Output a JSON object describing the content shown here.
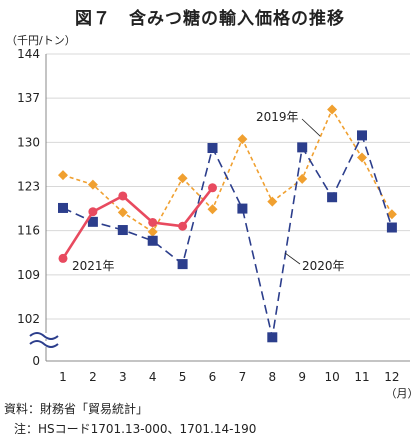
{
  "title": "図７　含みつ糖の輸入価格の推移",
  "source": "資料：財務省「貿易統計」",
  "note": "注：HSコード1701.13-000、1701.14-190",
  "chart_data": {
    "type": "line",
    "ylabel": "（千円/トン）",
    "xlabel": "（月）",
    "x": [
      1,
      2,
      3,
      4,
      5,
      6,
      7,
      8,
      9,
      10,
      11,
      12
    ],
    "x_ticks": [
      "1",
      "2",
      "3",
      "4",
      "5",
      "6",
      "7",
      "8",
      "9",
      "10",
      "11",
      "12"
    ],
    "y_ticks": [
      102,
      109,
      116,
      123,
      130,
      137,
      144
    ],
    "y_zero_label": "0",
    "ylim": [
      0,
      144
    ],
    "axis_break": true,
    "grid": "horizontal",
    "colors": {
      "2019": "#f0a030",
      "2020": "#2c3e8c",
      "2021": "#e84a5f"
    },
    "series": [
      {
        "name": "2019年",
        "values": [
          124.8,
          123.3,
          118.9,
          115.8,
          124.3,
          119.4,
          130.5,
          120.6,
          124.2,
          135.2,
          127.6,
          118.6
        ]
      },
      {
        "name": "2020年",
        "values": [
          119.6,
          117.4,
          116.1,
          114.4,
          110.7,
          129.1,
          119.5,
          99.1,
          129.2,
          121.3,
          131.1,
          116.5
        ]
      },
      {
        "name": "2021年",
        "values": [
          111.6,
          119.0,
          121.5,
          117.3,
          116.7,
          122.8,
          null,
          null,
          null,
          null,
          null,
          null
        ]
      }
    ]
  }
}
